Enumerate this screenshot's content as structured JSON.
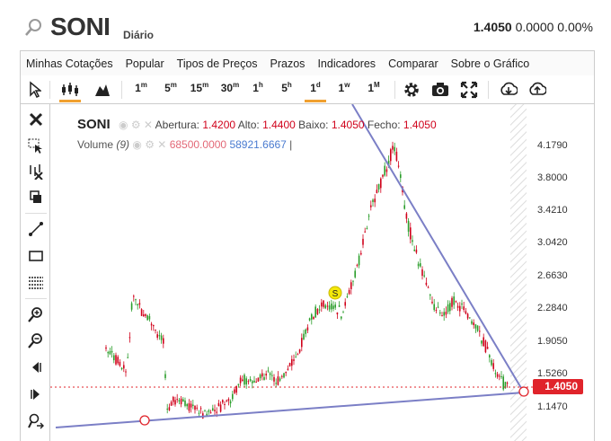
{
  "header": {
    "symbol": "SONI",
    "period": "Diário",
    "last_price": "1.4050",
    "change": "0.0000",
    "change_pct": "0.00%"
  },
  "menu": [
    "Minhas Cotações",
    "Popular",
    "Tipos de Preços",
    "Prazos",
    "Indicadores",
    "Comparar",
    "Sobre o Gráfico"
  ],
  "toolbar": {
    "intervals": [
      {
        "base": "1",
        "sup": "m"
      },
      {
        "base": "5",
        "sup": "m"
      },
      {
        "base": "15",
        "sup": "m"
      },
      {
        "base": "30",
        "sup": "m"
      },
      {
        "base": "1",
        "sup": "h"
      },
      {
        "base": "5",
        "sup": "h"
      },
      {
        "base": "1",
        "sup": "d"
      },
      {
        "base": "1",
        "sup": "w"
      },
      {
        "base": "1",
        "sup": "M"
      }
    ],
    "active_interval": "1d"
  },
  "legend": {
    "name": "SONI",
    "open_label": "Abertura:",
    "open": "1.4200",
    "high_label": "Alto:",
    "high": "1.4400",
    "low_label": "Baixo:",
    "low": "1.4050",
    "close_label": "Fecho:",
    "close": "1.4050",
    "volume_label": "Volume",
    "volume_period": "(9)",
    "volume_value": "68500.0000",
    "volume_ma": "58921.6667"
  },
  "yaxis": [
    "4.1790",
    "3.8000",
    "3.4210",
    "3.0420",
    "2.6630",
    "2.2840",
    "1.9050",
    "1.5260",
    "1.1470"
  ],
  "price_tag": "1.4050",
  "marker_label": "S",
  "colors": {
    "up": "#2a9d2a",
    "down": "#d0021b",
    "trendline": "#7b7fc6",
    "pricetag": "#e0242b",
    "accent": "#f0a030"
  },
  "chart_data": {
    "type": "candlestick",
    "price_range": [
      1.147,
      4.179
    ],
    "last": 1.405,
    "trendlines": [
      "descending from top to last bar",
      "ascending support line"
    ]
  }
}
